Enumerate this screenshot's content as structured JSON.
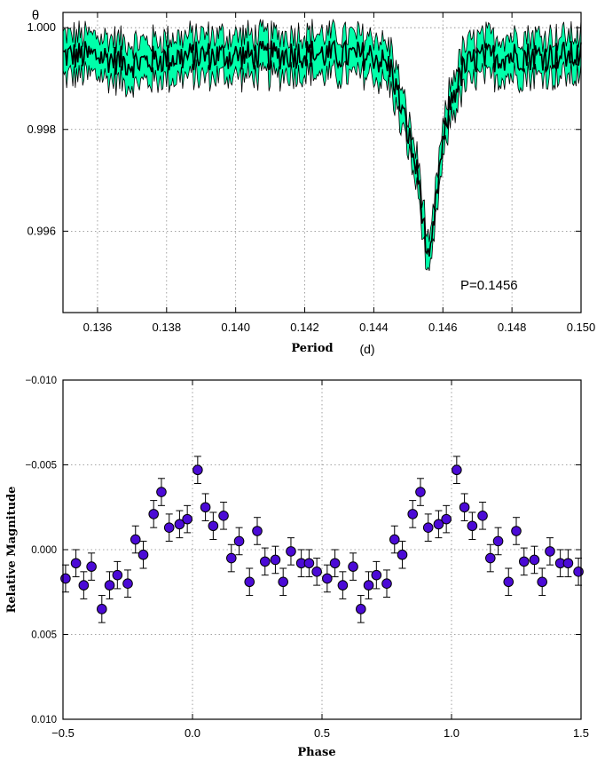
{
  "colors": {
    "band_fill": "#00FFAA",
    "line": "#000000",
    "marker_fill": "#4B0AD6",
    "marker_edge": "#000000"
  },
  "chart_data": [
    {
      "type": "line",
      "panel": "period-analysis",
      "ylabel": "θ",
      "xlabel": "Period",
      "xlabel_unit": "(d)",
      "xlim": [
        0.135,
        0.15
      ],
      "ylim": [
        0.9944,
        1.0003
      ],
      "xticks": [
        0.136,
        0.138,
        0.14,
        0.142,
        0.144,
        0.146,
        0.148,
        0.15
      ],
      "xtick_labels": [
        "0.136",
        "0.138",
        "0.140",
        "0.142",
        "0.144",
        "0.146",
        "0.148",
        "0.150"
      ],
      "yticks": [
        0.996,
        0.998,
        1.0
      ],
      "ytick_labels": [
        "0.996",
        "0.998",
        "1.000"
      ],
      "grid": true,
      "annotation": "P=0.1456",
      "series": [
        {
          "role": "theta-with-error-band",
          "x": [
            0.135,
            0.136,
            0.137,
            0.138,
            0.139,
            0.14,
            0.141,
            0.142,
            0.143,
            0.144,
            0.1445,
            0.145,
            0.1453,
            0.1456,
            0.1459,
            0.1462,
            0.1466,
            0.147,
            0.148,
            0.149,
            0.15
          ],
          "y": [
            0.99945,
            0.99945,
            0.9993,
            0.9994,
            0.99945,
            0.99945,
            0.99945,
            0.9995,
            0.99945,
            0.99945,
            0.9992,
            0.9979,
            0.997,
            0.9952,
            0.9972,
            0.9985,
            0.9992,
            0.9994,
            0.99945,
            0.99945,
            0.99945
          ],
          "band_half_width": 0.00035
        }
      ]
    },
    {
      "type": "scatter",
      "panel": "phase-curve",
      "xlabel": "Phase",
      "ylabel": "Relative Magnitude",
      "xlim": [
        -0.5,
        1.5
      ],
      "ylim": [
        -0.01,
        0.01
      ],
      "y_inverted": true,
      "xticks": [
        -0.5,
        0.0,
        0.5,
        1.0,
        1.5
      ],
      "xtick_labels": [
        "−0.5",
        "0.0",
        "0.5",
        "1.0",
        "1.5"
      ],
      "yticks": [
        -0.01,
        -0.005,
        0.0,
        0.005,
        0.01
      ],
      "ytick_labels": [
        "−0.010",
        "−0.005",
        "0.000",
        "0.005",
        "0.010"
      ],
      "grid": true,
      "series": [
        {
          "role": "phased-magnitudes",
          "x": [
            -0.49,
            -0.45,
            -0.42,
            -0.39,
            -0.35,
            -0.32,
            -0.29,
            -0.25,
            -0.22,
            -0.19,
            -0.15,
            -0.12,
            -0.09,
            -0.05,
            -0.02,
            0.02,
            0.05,
            0.08,
            0.12,
            0.15,
            0.18,
            0.22,
            0.25,
            0.28,
            0.32,
            0.35,
            0.38,
            0.42,
            0.45,
            0.48,
            0.52,
            0.55,
            0.58,
            0.62,
            0.65,
            0.68,
            0.71,
            0.75,
            0.78,
            0.81,
            0.85,
            0.88,
            0.91,
            0.95,
            0.98,
            1.02,
            1.05,
            1.08,
            1.12,
            1.15,
            1.18,
            1.22,
            1.25,
            1.28,
            1.32,
            1.35,
            1.38,
            1.42,
            1.45,
            1.49
          ],
          "y": [
            0.0017,
            0.0008,
            0.0021,
            0.001,
            0.0035,
            0.0021,
            0.0015,
            0.002,
            -0.0006,
            0.0003,
            -0.0021,
            -0.0034,
            -0.0013,
            -0.0015,
            -0.0018,
            -0.0047,
            -0.0025,
            -0.0014,
            -0.002,
            0.0005,
            -0.0005,
            0.0019,
            -0.0011,
            0.0007,
            0.0006,
            0.0019,
            0.0001,
            0.0008,
            0.0008,
            0.0013,
            0.0017,
            0.0008,
            0.0021,
            0.001,
            0.0035,
            0.0021,
            0.0015,
            0.002,
            -0.0006,
            0.0003,
            -0.0021,
            -0.0034,
            -0.0013,
            -0.0015,
            -0.0018,
            -0.0047,
            -0.0025,
            -0.0014,
            -0.002,
            0.0005,
            -0.0005,
            0.0019,
            -0.0011,
            0.0007,
            0.0006,
            0.0019,
            0.0001,
            0.0008,
            0.0008,
            0.0013
          ],
          "yerr": 0.0008
        }
      ]
    }
  ]
}
